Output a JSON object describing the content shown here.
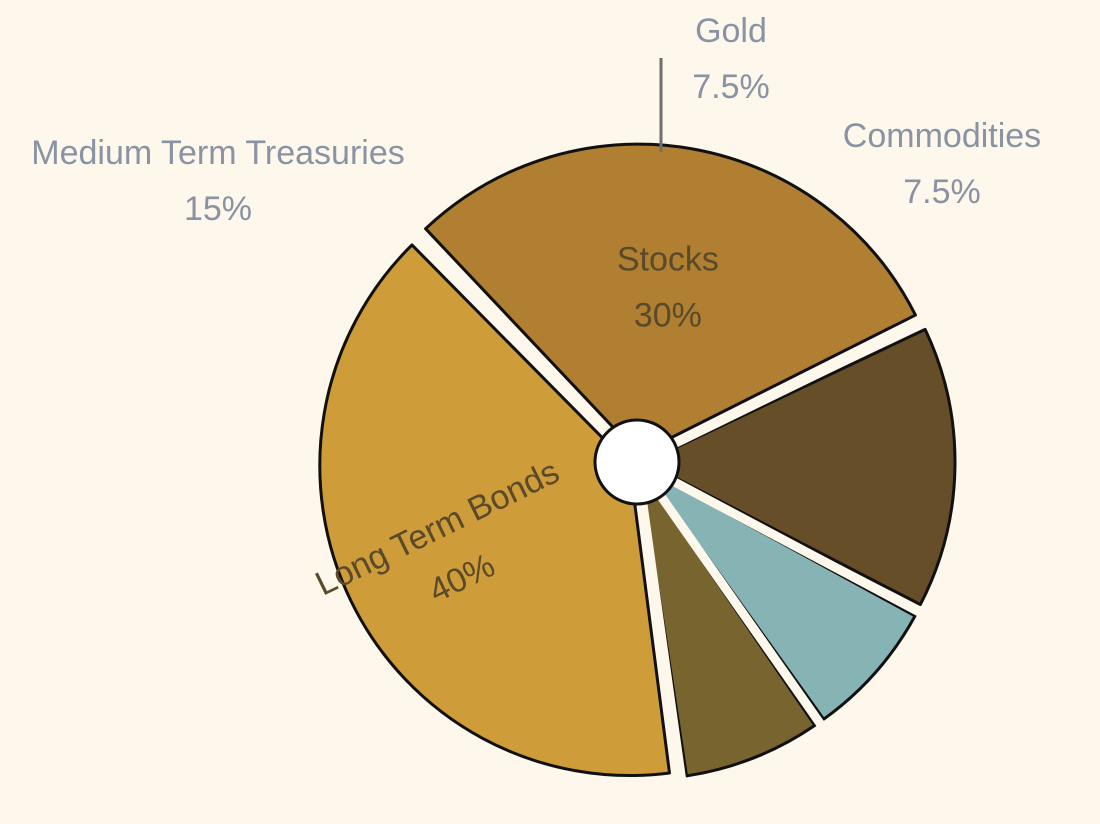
{
  "chart_data": {
    "type": "pie",
    "slices": [
      {
        "label": "Long Term Bonds",
        "value_label": "40%",
        "value": 40,
        "color": "#cf9c3a"
      },
      {
        "label": "Stocks",
        "value_label": "30%",
        "value": 30,
        "color": "#b07f31"
      },
      {
        "label": "Medium Term Treasuries",
        "value_label": "15%",
        "value": 15,
        "color": "#664e28"
      },
      {
        "label": "Gold",
        "value_label": "7.5%",
        "value": 7.5,
        "color": "#86b3b4"
      },
      {
        "label": "Commodities",
        "value_label": "7.5%",
        "value": 7.5,
        "color": "#78642e"
      }
    ],
    "title": ""
  }
}
